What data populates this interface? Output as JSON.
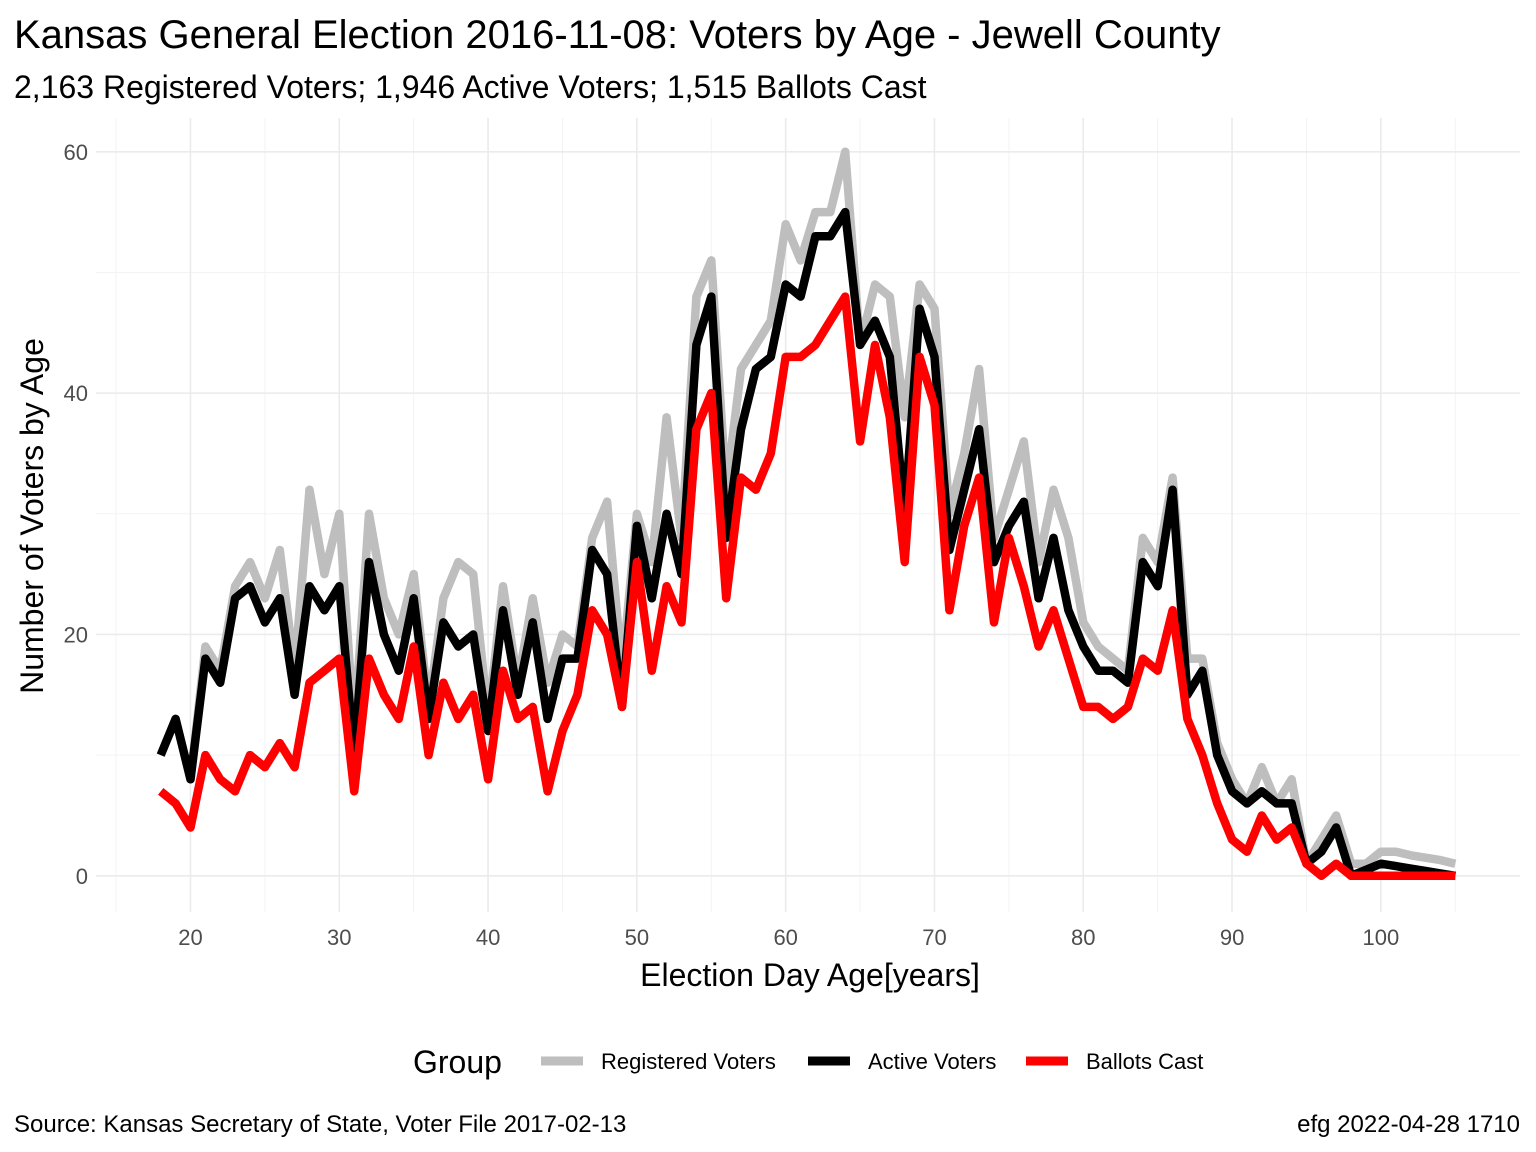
{
  "title": "Kansas General Election 2016-11-08:  Voters by Age - Jewell County",
  "subtitle": "2,163 Registered Voters; 1,946 Active Voters; 1,515 Ballots Cast",
  "caption_left": "Source:  Kansas Secretary of State, Voter File  2017-02-13",
  "caption_right": "efg 2022-04-28 1710",
  "legend": {
    "title": "Group",
    "placement": "bottom",
    "items": [
      {
        "label": "Registered Voters",
        "color": "#bebebe"
      },
      {
        "label": "Active Voters",
        "color": "#000000"
      },
      {
        "label": "Ballots Cast",
        "color": "#ff0000"
      }
    ]
  },
  "chart_data": {
    "type": "line",
    "xlabel": "Election Day Age[years]",
    "ylabel": "Number of Voters by Age",
    "xlim": [
      13.65,
      109.35
    ],
    "ylim": [
      -3,
      62.8
    ],
    "xticks": [
      20,
      30,
      40,
      50,
      60,
      70,
      80,
      90,
      100
    ],
    "yticks": [
      0,
      20,
      40,
      60
    ],
    "grid": true,
    "x": [
      18,
      19,
      20,
      21,
      22,
      23,
      24,
      25,
      26,
      27,
      28,
      29,
      30,
      31,
      32,
      33,
      34,
      35,
      36,
      37,
      38,
      39,
      40,
      41,
      42,
      43,
      44,
      45,
      46,
      47,
      48,
      49,
      50,
      51,
      52,
      53,
      54,
      55,
      56,
      57,
      58,
      59,
      60,
      61,
      62,
      63,
      64,
      65,
      66,
      67,
      68,
      69,
      70,
      71,
      72,
      73,
      74,
      75,
      76,
      77,
      78,
      79,
      80,
      81,
      82,
      83,
      84,
      85,
      86,
      87,
      88,
      89,
      90,
      91,
      92,
      93,
      94,
      95,
      96,
      97,
      98,
      99,
      100,
      101,
      102,
      103,
      104,
      105
    ],
    "series": [
      {
        "name": "Registered Voters",
        "color": "#bebebe",
        "values": [
          10,
          13,
          8,
          19,
          17,
          24,
          26,
          23,
          27,
          17,
          32,
          25,
          30,
          12,
          30,
          23,
          20,
          25,
          14,
          23,
          26,
          25,
          13,
          24,
          16,
          23,
          16,
          20,
          19,
          28,
          31,
          17,
          30,
          26,
          38,
          28,
          48,
          51,
          32,
          42,
          44,
          46,
          54,
          51,
          55,
          55,
          60,
          44,
          49,
          48,
          38,
          49,
          47,
          30,
          35,
          42,
          28,
          32,
          36,
          26,
          32,
          28,
          21,
          19,
          18,
          17,
          28,
          26,
          33,
          18,
          18,
          11,
          8,
          6,
          9,
          6,
          8,
          1,
          3,
          5,
          1,
          1,
          2,
          2,
          1.7,
          1.5,
          1.3,
          1
        ]
      },
      {
        "name": "Active Voters",
        "color": "#000000",
        "values": [
          10,
          13,
          8,
          18,
          16,
          23,
          24,
          21,
          23,
          15,
          24,
          22,
          24,
          10,
          26,
          20,
          17,
          23,
          13,
          21,
          19,
          20,
          12,
          22,
          15,
          21,
          13,
          18,
          18,
          27,
          25,
          14,
          29,
          23,
          30,
          25,
          44,
          48,
          28,
          37,
          42,
          43,
          49,
          48,
          53,
          53,
          55,
          44,
          46,
          43,
          30,
          47,
          43,
          27,
          32,
          37,
          26,
          29,
          31,
          23,
          28,
          22,
          19,
          17,
          17,
          16,
          26,
          24,
          32,
          15,
          17,
          10,
          7,
          6,
          7,
          6,
          6,
          1,
          2,
          4,
          0,
          0.5,
          1,
          0.8,
          0.6,
          0.4,
          0.2,
          0
        ]
      },
      {
        "name": "Ballots Cast",
        "color": "#ff0000",
        "values": [
          7,
          6,
          4,
          10,
          8,
          7,
          10,
          9,
          11,
          9,
          16,
          17,
          18,
          7,
          18,
          15,
          13,
          19,
          10,
          16,
          13,
          15,
          8,
          17,
          13,
          14,
          7,
          12,
          15,
          22,
          20,
          14,
          26,
          17,
          24,
          21,
          37,
          40,
          23,
          33,
          32,
          35,
          43,
          43,
          44,
          46,
          48,
          36,
          44,
          38,
          26,
          43,
          39,
          22,
          29,
          33,
          21,
          28,
          24,
          19,
          22,
          18,
          14,
          14,
          13,
          14,
          18,
          17,
          22,
          13,
          10,
          6,
          3,
          2,
          5,
          3,
          4,
          1,
          0,
          1,
          0,
          0,
          0,
          0,
          0,
          0,
          0,
          0
        ]
      }
    ]
  }
}
